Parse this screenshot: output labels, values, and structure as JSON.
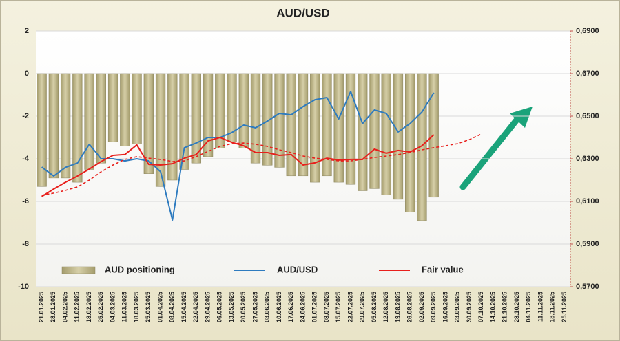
{
  "chart_data": {
    "type": "bar",
    "title": "AUD/USD",
    "categories": [
      "21.01.2025",
      "28.01.2025",
      "04.02.2025",
      "11.02.2025",
      "18.02.2025",
      "25.02.2025",
      "04.03.2025",
      "11.03.2025",
      "18.03.2025",
      "25.03.2025",
      "01.04.2025",
      "08.04.2025",
      "15.04.2025",
      "22.04.2025",
      "29.04.2025",
      "06.05.2025",
      "13.05.2025",
      "20.05.2025",
      "27.05.2025",
      "03.06.2025",
      "10.06.2025",
      "17.06.2025",
      "24.06.2025",
      "01.07.2025",
      "08.07.2025",
      "15.07.2025",
      "22.07.2025",
      "29.07.2025",
      "05.08.2025",
      "12.08.2025",
      "19.08.2025",
      "26.08.2025",
      "02.09.2025",
      "09.09.2025",
      "16.09.2025",
      "23.09.2025",
      "30.09.2025",
      "07.10.2025",
      "14.10.2025",
      "21.10.2025",
      "28.10.2025",
      "04.11.2025",
      "11.11.2025",
      "18.11.2025",
      "25.11.2025"
    ],
    "series": [
      {
        "name": "AUD positioning",
        "type": "bar",
        "color": "#c9c196",
        "values": [
          -5.3,
          -4.9,
          -4.9,
          -5.1,
          -4.5,
          -4.2,
          -3.2,
          -3.4,
          -3.3,
          -4.7,
          -5.3,
          -5.0,
          -4.5,
          -4.2,
          -3.9,
          -3.5,
          -3.2,
          -3.5,
          -4.2,
          -4.3,
          -4.4,
          -4.8,
          -4.8,
          -5.1,
          -4.8,
          -5.1,
          -5.2,
          -5.5,
          -5.4,
          -5.7,
          -5.9,
          -6.5,
          -6.9,
          -5.8,
          null,
          null,
          null,
          null,
          null,
          null,
          null,
          null,
          null,
          null,
          null
        ]
      },
      {
        "name": "AUD/USD",
        "type": "line",
        "axis": "y2",
        "color": "#2e7bbf",
        "values": [
          0.6261,
          0.6219,
          0.626,
          0.628,
          0.6368,
          0.63,
          0.63,
          0.629,
          0.63,
          0.629,
          0.6239,
          0.6013,
          0.6352,
          0.6374,
          0.64,
          0.64,
          0.6423,
          0.6458,
          0.6445,
          0.6477,
          0.6513,
          0.6506,
          0.6545,
          0.6577,
          0.6587,
          0.6487,
          0.6616,
          0.6465,
          0.6529,
          0.6513,
          0.6426,
          0.6465,
          0.6519,
          0.661,
          null,
          null,
          null,
          null,
          null,
          null,
          null,
          null,
          null,
          null,
          null
        ]
      },
      {
        "name": "Fair value",
        "type": "line",
        "axis": "y2",
        "color": "#e8201c",
        "values": [
          0.6123,
          0.6158,
          0.619,
          0.6219,
          0.6252,
          0.6287,
          0.6316,
          0.632,
          0.6365,
          0.6274,
          0.6271,
          0.6277,
          0.6303,
          0.632,
          0.6384,
          0.64,
          0.6377,
          0.6361,
          0.6329,
          0.6329,
          0.6316,
          0.632,
          0.6271,
          0.6281,
          0.6303,
          0.6294,
          0.6297,
          0.6297,
          0.6345,
          0.6326,
          0.6339,
          0.6332,
          0.6361,
          0.6413,
          null,
          null,
          null,
          null,
          null,
          null,
          null,
          null,
          null,
          null,
          null
        ]
      },
      {
        "type": "line",
        "axis": "y2",
        "dash": true,
        "color": "#e8201c",
        "values": [
          0.6129,
          0.6139,
          0.6152,
          0.6168,
          0.62,
          0.6239,
          0.6271,
          0.6297,
          0.631,
          0.6303,
          0.6297,
          0.6287,
          0.629,
          0.631,
          0.6335,
          0.6358,
          0.6371,
          0.6374,
          0.6368,
          0.6358,
          0.6342,
          0.6329,
          0.6313,
          0.6303,
          0.6297,
          0.629,
          0.629,
          0.6297,
          0.6306,
          0.6313,
          0.632,
          0.6329,
          0.6342,
          0.6352,
          0.6361,
          0.6371,
          0.639,
          0.6416,
          null,
          null,
          null,
          null,
          null,
          null,
          null
        ]
      }
    ],
    "ylim": [
      -10,
      2
    ],
    "yticks": [
      2,
      0,
      -2,
      -4,
      -6,
      -8,
      -10
    ],
    "y2lim": [
      0.57,
      0.69
    ],
    "y2ticks": [
      {
        "value": 0.69,
        "label": "0,6900"
      },
      {
        "value": 0.67,
        "label": "0,6700"
      },
      {
        "value": 0.65,
        "label": "0,6500"
      },
      {
        "value": 0.63,
        "label": "0,6300"
      },
      {
        "value": 0.61,
        "label": "0,6100"
      },
      {
        "value": 0.59,
        "label": "0,5900"
      },
      {
        "value": 0.57,
        "label": "0,5700"
      }
    ],
    "grid": true
  }
}
